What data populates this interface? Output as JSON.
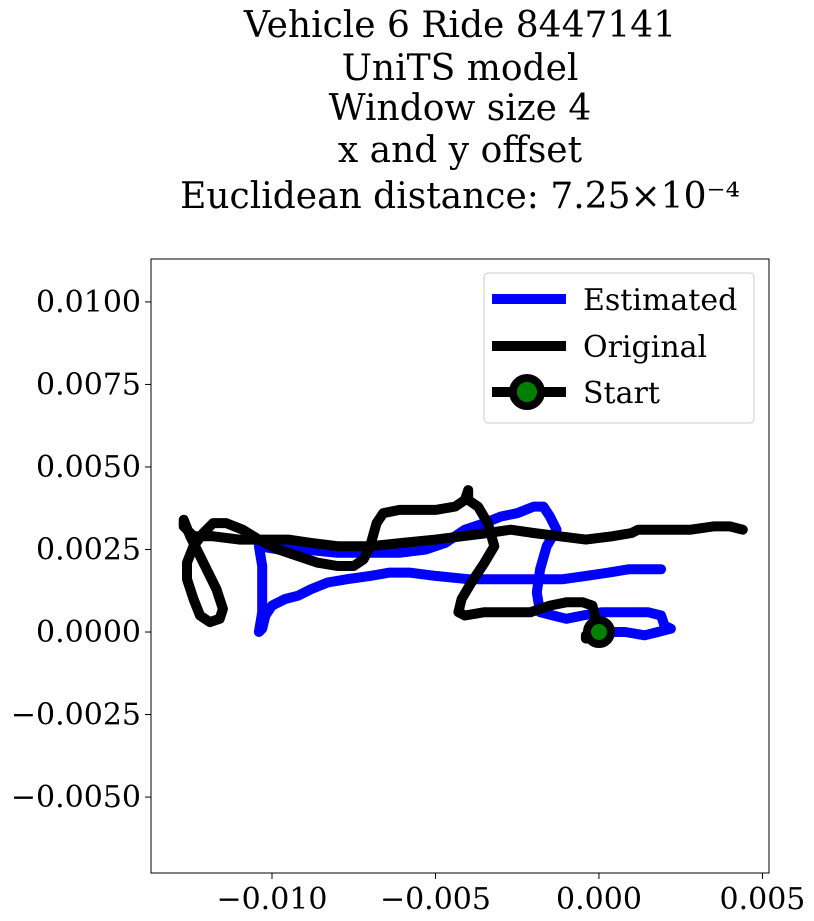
{
  "chart_data": {
    "type": "line",
    "title_lines": [
      "Vehicle 6 Ride 8447141",
      "UniTS model",
      "Window size 4",
      "x and y offset",
      "Euclidean distance: 7.25×10⁻⁴"
    ],
    "xlabel": "",
    "ylabel": "",
    "xlim": [
      -0.0137,
      0.0052
    ],
    "ylim": [
      -0.0073,
      0.0113
    ],
    "x_ticks": [
      -0.01,
      -0.005,
      0.0,
      0.005
    ],
    "x_tick_labels": [
      "−0.010",
      "−0.005",
      "0.000",
      "0.005"
    ],
    "y_ticks": [
      -0.005,
      -0.0025,
      0.0,
      0.0025,
      0.005,
      0.0075,
      0.01
    ],
    "y_tick_labels": [
      "−0.0050",
      "−0.0025",
      "0.0000",
      "0.0025",
      "0.0050",
      "0.0075",
      "0.0100"
    ],
    "legend_position": "top-right",
    "series": [
      {
        "name": "Estimated",
        "color": "#0000ff",
        "points": [
          [
            0.0019,
            0.0019
          ],
          [
            0.0014,
            0.0019
          ],
          [
            0.0009,
            0.0019
          ],
          [
            0.0003,
            0.0018
          ],
          [
            -0.0004,
            0.0017
          ],
          [
            -0.0011,
            0.0016
          ],
          [
            -0.002,
            0.0016
          ],
          [
            -0.003,
            0.0016
          ],
          [
            -0.004,
            0.0016
          ],
          [
            -0.005,
            0.0017
          ],
          [
            -0.0058,
            0.0018
          ],
          [
            -0.0064,
            0.0018
          ],
          [
            -0.007,
            0.0017
          ],
          [
            -0.0077,
            0.0016
          ],
          [
            -0.0083,
            0.0015
          ],
          [
            -0.0088,
            0.0013
          ],
          [
            -0.0092,
            0.0011
          ],
          [
            -0.0096,
            0.001
          ],
          [
            -0.01,
            0.0008
          ],
          [
            -0.0102,
            0.0005
          ],
          [
            -0.0103,
            0.0001
          ],
          [
            -0.0104,
            0.0
          ],
          [
            -0.0103,
            0.0006
          ],
          [
            -0.0103,
            0.0013
          ],
          [
            -0.0103,
            0.002
          ],
          [
            -0.0104,
            0.0026
          ],
          [
            -0.0098,
            0.0025
          ],
          [
            -0.009,
            0.0025
          ],
          [
            -0.008,
            0.0024
          ],
          [
            -0.007,
            0.0024
          ],
          [
            -0.0061,
            0.0024
          ],
          [
            -0.0053,
            0.0025
          ],
          [
            -0.0047,
            0.0027
          ],
          [
            -0.0041,
            0.0031
          ],
          [
            -0.0035,
            0.0033
          ],
          [
            -0.003,
            0.0035
          ],
          [
            -0.0025,
            0.0036
          ],
          [
            -0.002,
            0.0038
          ],
          [
            -0.0017,
            0.0038
          ],
          [
            -0.0015,
            0.0035
          ],
          [
            -0.0013,
            0.0031
          ],
          [
            -0.0016,
            0.0026
          ],
          [
            -0.0018,
            0.0019
          ],
          [
            -0.0019,
            0.0012
          ],
          [
            -0.0018,
            0.0006
          ],
          [
            -0.0014,
            0.0005
          ],
          [
            -0.001,
            0.0004
          ],
          [
            -0.0005,
            0.0005
          ],
          [
            0.0001,
            0.0006
          ],
          [
            0.0008,
            0.0006
          ],
          [
            0.0015,
            0.0006
          ],
          [
            0.0019,
            0.0005
          ],
          [
            0.002,
            0.0002
          ],
          [
            0.0022,
            0.0001
          ],
          [
            0.0018,
            0.0
          ],
          [
            0.0014,
            -0.0001
          ],
          [
            0.0008,
            0.0
          ],
          [
            0.0002,
            0.0
          ],
          [
            0.0,
            0.0
          ]
        ]
      },
      {
        "name": "Original",
        "color": "#000000",
        "points": [
          [
            0.0044,
            0.0031
          ],
          [
            0.004,
            0.0032
          ],
          [
            0.0035,
            0.0032
          ],
          [
            0.0028,
            0.0031
          ],
          [
            0.002,
            0.0031
          ],
          [
            0.0012,
            0.0031
          ],
          [
            0.001,
            0.003
          ],
          [
            0.0004,
            0.0029
          ],
          [
            -0.0004,
            0.0028
          ],
          [
            -0.0012,
            0.0029
          ],
          [
            -0.002,
            0.003
          ],
          [
            -0.0027,
            0.0031
          ],
          [
            -0.0034,
            0.003
          ],
          [
            -0.0042,
            0.0029
          ],
          [
            -0.005,
            0.0028
          ],
          [
            -0.006,
            0.0027
          ],
          [
            -0.007,
            0.0026
          ],
          [
            -0.008,
            0.0026
          ],
          [
            -0.0088,
            0.0027
          ],
          [
            -0.0095,
            0.0028
          ],
          [
            -0.0103,
            0.0028
          ],
          [
            -0.011,
            0.0028
          ],
          [
            -0.0118,
            0.0029
          ],
          [
            -0.0124,
            0.0029
          ],
          [
            -0.0127,
            0.0032
          ],
          [
            -0.0127,
            0.0034
          ],
          [
            -0.0125,
            0.0029
          ],
          [
            -0.0123,
            0.0025
          ],
          [
            -0.012,
            0.0019
          ],
          [
            -0.0117,
            0.0013
          ],
          [
            -0.0115,
            0.0007
          ],
          [
            -0.0116,
            0.0004
          ],
          [
            -0.0119,
            0.0003
          ],
          [
            -0.0122,
            0.0005
          ],
          [
            -0.0124,
            0.001
          ],
          [
            -0.0126,
            0.0016
          ],
          [
            -0.0126,
            0.0021
          ],
          [
            -0.0124,
            0.0026
          ],
          [
            -0.0121,
            0.003
          ],
          [
            -0.0118,
            0.0033
          ],
          [
            -0.0114,
            0.0033
          ],
          [
            -0.0109,
            0.0031
          ],
          [
            -0.0104,
            0.0028
          ],
          [
            -0.0098,
            0.0025
          ],
          [
            -0.0092,
            0.0023
          ],
          [
            -0.0086,
            0.0021
          ],
          [
            -0.008,
            0.002
          ],
          [
            -0.0075,
            0.002
          ],
          [
            -0.0072,
            0.0022
          ],
          [
            -0.007,
            0.0026
          ],
          [
            -0.0068,
            0.0033
          ],
          [
            -0.0066,
            0.0036
          ],
          [
            -0.0061,
            0.0037
          ],
          [
            -0.0055,
            0.0037
          ],
          [
            -0.005,
            0.0037
          ],
          [
            -0.0044,
            0.0038
          ],
          [
            -0.0041,
            0.004
          ],
          [
            -0.004,
            0.0043
          ],
          [
            -0.004,
            0.004
          ],
          [
            -0.0037,
            0.0038
          ],
          [
            -0.0034,
            0.0033
          ],
          [
            -0.0032,
            0.0026
          ],
          [
            -0.0035,
            0.0021
          ],
          [
            -0.0039,
            0.0015
          ],
          [
            -0.0042,
            0.001
          ],
          [
            -0.0043,
            0.0006
          ],
          [
            -0.0041,
            0.0005
          ],
          [
            -0.0035,
            0.0006
          ],
          [
            -0.0028,
            0.0006
          ],
          [
            -0.0021,
            0.0006
          ],
          [
            -0.0015,
            0.0008
          ],
          [
            -0.001,
            0.0009
          ],
          [
            -0.0005,
            0.0009
          ],
          [
            -0.0002,
            0.0008
          ],
          [
            -0.0001,
            0.0004
          ],
          [
            -0.0001,
            0.0001
          ],
          [
            -0.0004,
            -0.0001
          ],
          [
            -0.0004,
            -0.0002
          ],
          [
            -0.0002,
            0.0001
          ],
          [
            0.0,
            0.0
          ]
        ]
      }
    ],
    "start_marker": {
      "name": "Start",
      "point": [
        0.0,
        0.0
      ],
      "fill": "#008000",
      "edge": "#000000"
    }
  }
}
